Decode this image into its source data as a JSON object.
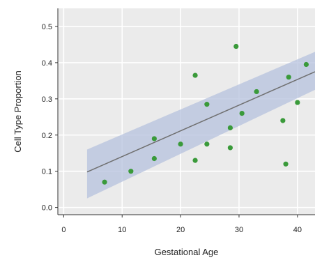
{
  "chart_data": {
    "type": "scatter",
    "title": "",
    "xlabel": "Gestational Age",
    "ylabel": "Cell Type Proportion",
    "xlim": [
      -1,
      43
    ],
    "ylim": [
      -0.02,
      0.55
    ],
    "xticks": [
      0,
      10,
      20,
      30,
      40
    ],
    "xtick_labels": [
      "0",
      "10",
      "20",
      "30",
      "40"
    ],
    "yticks": [
      0.0,
      0.1,
      0.2,
      0.3,
      0.4,
      0.5
    ],
    "ytick_labels": [
      "0.0",
      "0.1",
      "0.2",
      "0.3",
      "0.4",
      "0.5"
    ],
    "grid": true,
    "background_color": "#ebebeb",
    "grid_color": "#ffffff",
    "point_color": "#3a9a3a",
    "line_color": "#6f6f6f",
    "band_color": "#b6c2dd",
    "points": [
      {
        "x": 7,
        "y": 0.07
      },
      {
        "x": 11.5,
        "y": 0.1
      },
      {
        "x": 15.5,
        "y": 0.19
      },
      {
        "x": 15.5,
        "y": 0.135
      },
      {
        "x": 20,
        "y": 0.175
      },
      {
        "x": 22.5,
        "y": 0.365
      },
      {
        "x": 22.5,
        "y": 0.13
      },
      {
        "x": 24.5,
        "y": 0.285
      },
      {
        "x": 24.5,
        "y": 0.175
      },
      {
        "x": 28.5,
        "y": 0.22
      },
      {
        "x": 28.5,
        "y": 0.165
      },
      {
        "x": 29.5,
        "y": 0.445
      },
      {
        "x": 30.5,
        "y": 0.26
      },
      {
        "x": 33,
        "y": 0.32
      },
      {
        "x": 37.5,
        "y": 0.24
      },
      {
        "x": 38,
        "y": 0.12
      },
      {
        "x": 38.5,
        "y": 0.36
      },
      {
        "x": 40,
        "y": 0.29
      },
      {
        "x": 41.5,
        "y": 0.395
      }
    ],
    "trend": {
      "x": [
        4,
        43
      ],
      "y": [
        0.098,
        0.375
      ]
    },
    "band": {
      "x": [
        4,
        43
      ],
      "lower": [
        0.025,
        0.325
      ],
      "upper": [
        0.16,
        0.43
      ]
    }
  }
}
